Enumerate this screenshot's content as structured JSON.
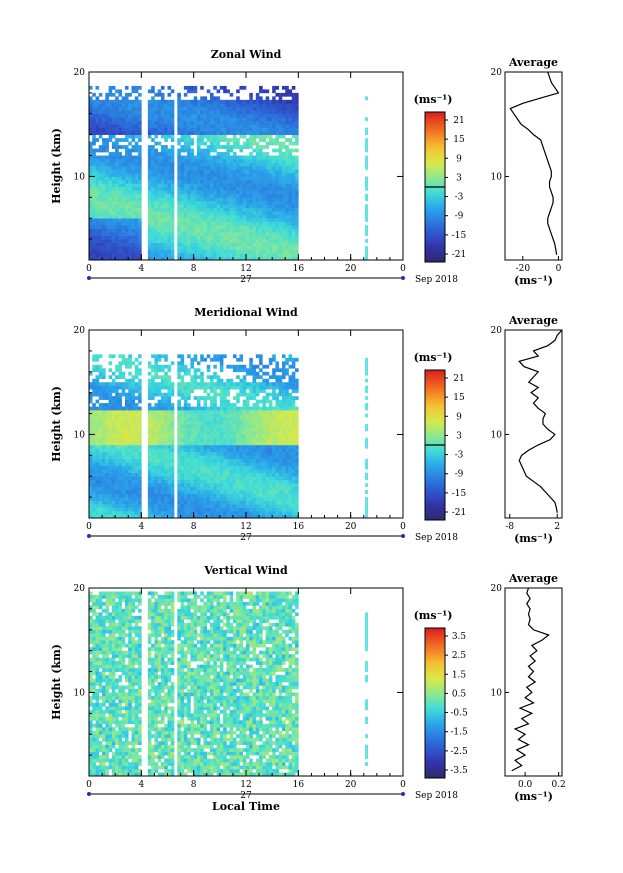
{
  "figure": {
    "date_label": "Sep 2018",
    "day_label": "27",
    "xlabel_bottom": "Local Time",
    "x_ticks": [
      "0",
      "4",
      "8",
      "12",
      "16",
      "20",
      "0"
    ],
    "ylabel": "Height (km)",
    "avg_title": "Average"
  },
  "chart_data": [
    {
      "id": "zonal",
      "type": "heatmap",
      "title": "Zonal Wind",
      "ylabel": "Height (km)",
      "xlim": [
        0,
        24
      ],
      "ylim": [
        2,
        20
      ],
      "y_ticks": [
        "10",
        "20"
      ],
      "colorbar": {
        "unit": "(ms⁻¹)",
        "ticks": [
          "21",
          "15",
          "9",
          "3",
          "-3",
          "-9",
          "-15",
          "-21"
        ],
        "range": [
          -24,
          24
        ],
        "zero_contour": true
      },
      "average": {
        "title": "Average",
        "unit": "(ms⁻¹)",
        "x_ticks": [
          "-20",
          "0"
        ],
        "xlim": [
          -30,
          2
        ],
        "profile": [
          [
            -1,
            2.5
          ],
          [
            -1.5,
            3.0
          ],
          [
            -2,
            3.5
          ],
          [
            -3,
            4.0
          ],
          [
            -4,
            4.5
          ],
          [
            -5,
            5.0
          ],
          [
            -6,
            5.5
          ],
          [
            -6,
            6.0
          ],
          [
            -5,
            6.5
          ],
          [
            -4,
            7.0
          ],
          [
            -3,
            7.5
          ],
          [
            -3,
            8.0
          ],
          [
            -4,
            8.5
          ],
          [
            -5,
            9.0
          ],
          [
            -5,
            9.5
          ],
          [
            -4,
            10.0
          ],
          [
            -4,
            10.5
          ],
          [
            -5,
            11.0
          ],
          [
            -6,
            11.5
          ],
          [
            -7,
            12.0
          ],
          [
            -8,
            12.5
          ],
          [
            -9,
            13.0
          ],
          [
            -10,
            13.5
          ],
          [
            -14,
            14.0
          ],
          [
            -17,
            14.5
          ],
          [
            -21,
            15.0
          ],
          [
            -23,
            15.5
          ],
          [
            -25,
            16.0
          ],
          [
            -27,
            16.5
          ],
          [
            -20,
            17.0
          ],
          [
            -10,
            17.5
          ],
          [
            0,
            18.0
          ],
          [
            -2,
            18.5
          ],
          [
            -4,
            19.0
          ],
          [
            -5,
            19.5
          ],
          [
            -6,
            20.0
          ]
        ]
      }
    },
    {
      "id": "meridional",
      "type": "heatmap",
      "title": "Meridional Wind",
      "ylabel": "Height (km)",
      "xlim": [
        0,
        24
      ],
      "ylim": [
        2,
        20
      ],
      "y_ticks": [
        "10",
        "20"
      ],
      "colorbar": {
        "unit": "(ms⁻¹)",
        "ticks": [
          "21",
          "15",
          "9",
          "3",
          "-3",
          "-9",
          "-15",
          "-21"
        ],
        "range": [
          -24,
          24
        ],
        "zero_contour": true
      },
      "average": {
        "title": "Average",
        "unit": "(ms⁻¹)",
        "x_ticks": [
          "-8",
          "2"
        ],
        "xlim": [
          -9,
          3
        ],
        "profile": [
          [
            2.0,
            2.5
          ],
          [
            1.8,
            3.0
          ],
          [
            1.5,
            3.5
          ],
          [
            0.5,
            4.0
          ],
          [
            -0.5,
            4.5
          ],
          [
            -1.5,
            5.0
          ],
          [
            -3.0,
            5.5
          ],
          [
            -4.5,
            6.0
          ],
          [
            -5.0,
            6.5
          ],
          [
            -5.5,
            7.0
          ],
          [
            -6.0,
            7.5
          ],
          [
            -5.5,
            8.0
          ],
          [
            -4.0,
            8.5
          ],
          [
            -2.0,
            9.0
          ],
          [
            0.5,
            9.5
          ],
          [
            1.5,
            10.0
          ],
          [
            0.0,
            10.5
          ],
          [
            -1.0,
            11.0
          ],
          [
            -1.0,
            11.5
          ],
          [
            -0.5,
            12.0
          ],
          [
            -2.0,
            12.5
          ],
          [
            -3.0,
            13.0
          ],
          [
            -2.0,
            13.5
          ],
          [
            -3.5,
            14.0
          ],
          [
            -2.0,
            14.5
          ],
          [
            -4.0,
            15.0
          ],
          [
            -3.0,
            15.5
          ],
          [
            -2.0,
            16.0
          ],
          [
            -5.0,
            16.5
          ],
          [
            -6.0,
            17.0
          ],
          [
            -2.0,
            17.5
          ],
          [
            -3.0,
            18.0
          ],
          [
            0.0,
            18.5
          ],
          [
            1.5,
            19.0
          ],
          [
            2.0,
            19.5
          ],
          [
            3.0,
            20.0
          ]
        ]
      }
    },
    {
      "id": "vertical",
      "type": "heatmap",
      "title": "Vertical Wind",
      "ylabel": "Height (km)",
      "xlabel": "Local Time",
      "xlim": [
        0,
        24
      ],
      "ylim": [
        2,
        20
      ],
      "y_ticks": [
        "10",
        "20"
      ],
      "colorbar": {
        "unit": "(ms⁻¹)",
        "ticks": [
          "3.5",
          "2.5",
          "1.5",
          "0.5",
          "-0.5",
          "-1.5",
          "-2.5",
          "-3.5"
        ],
        "range": [
          -4,
          4
        ],
        "zero_contour": false
      },
      "average": {
        "title": "Average",
        "unit": "(ms⁻¹)",
        "x_ticks": [
          "0.0",
          "0.2"
        ],
        "xlim": [
          -0.12,
          0.22
        ],
        "profile": [
          [
            -0.08,
            2.5
          ],
          [
            -0.02,
            3.0
          ],
          [
            -0.06,
            3.5
          ],
          [
            0.0,
            4.0
          ],
          [
            -0.05,
            4.5
          ],
          [
            0.02,
            5.0
          ],
          [
            -0.04,
            5.5
          ],
          [
            0.0,
            6.0
          ],
          [
            -0.06,
            6.5
          ],
          [
            0.02,
            7.0
          ],
          [
            -0.02,
            7.5
          ],
          [
            0.04,
            8.0
          ],
          [
            -0.03,
            8.5
          ],
          [
            0.05,
            9.0
          ],
          [
            0.0,
            9.5
          ],
          [
            0.04,
            10.0
          ],
          [
            0.01,
            10.5
          ],
          [
            0.06,
            11.0
          ],
          [
            0.02,
            11.5
          ],
          [
            0.05,
            12.0
          ],
          [
            0.02,
            12.5
          ],
          [
            0.06,
            13.0
          ],
          [
            0.03,
            13.5
          ],
          [
            0.07,
            14.0
          ],
          [
            0.04,
            14.5
          ],
          [
            0.1,
            15.0
          ],
          [
            0.14,
            15.5
          ],
          [
            0.05,
            16.0
          ],
          [
            0.02,
            16.5
          ],
          [
            0.03,
            17.0
          ],
          [
            0.02,
            17.5
          ],
          [
            0.03,
            18.0
          ],
          [
            0.01,
            18.5
          ],
          [
            0.03,
            19.0
          ],
          [
            0.01,
            19.5
          ],
          [
            0.02,
            20.0
          ]
        ]
      }
    }
  ]
}
